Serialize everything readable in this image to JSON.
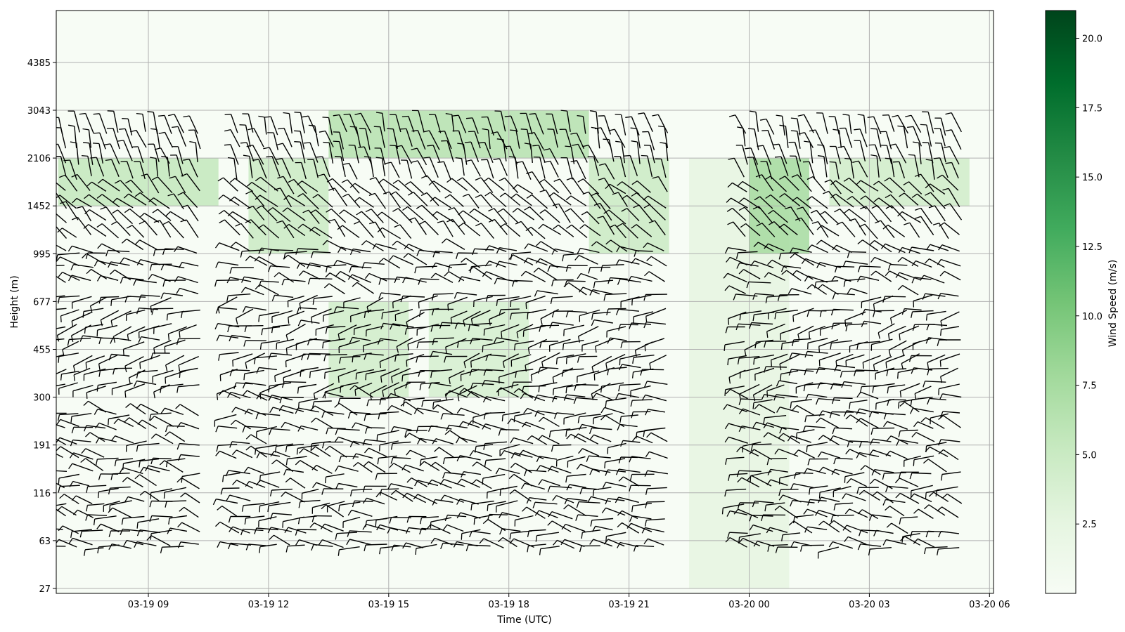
{
  "chart_data": {
    "type": "heatmap",
    "title": "",
    "xlabel": "Time (UTC)",
    "ylabel": "Height (m)",
    "x_ticks": [
      "03-19 09",
      "03-19 12",
      "03-19 15",
      "03-19 18",
      "03-19 21",
      "03-20 00",
      "03-20 03",
      "03-20 06"
    ],
    "y_ticks": [
      "27",
      "63",
      "116",
      "191",
      "300",
      "455",
      "677",
      "995",
      "1452",
      "2106",
      "3043",
      "4385"
    ],
    "colorbar": {
      "label": "Wind Speed (m/s)",
      "ticks": [
        "2.5",
        "5.0",
        "7.5",
        "10.0",
        "12.5",
        "15.0",
        "17.5",
        "20.0"
      ],
      "range": [
        0,
        21
      ],
      "colormap": "Greens",
      "colors": [
        "#f7fcf5",
        "#e5f5e0",
        "#c7e9c0",
        "#a1d99b",
        "#74c476",
        "#41ab5d",
        "#238b45",
        "#006d2c",
        "#00441b"
      ]
    },
    "x_range_hours": [
      6.7,
      30.1
    ],
    "grid": true,
    "overlay": "wind barbs (black)",
    "speed_field": [
      {
        "time_span": [
          "03-19 06:45",
          "03-19 10:45"
        ],
        "height_span": [
          "1452",
          "2106"
        ],
        "speed_mps": 5.5
      },
      {
        "time_span": [
          "03-19 11:30",
          "03-19 13:30"
        ],
        "height_span": [
          "995",
          "2106"
        ],
        "speed_mps": 5.0
      },
      {
        "time_span": [
          "03-19 13:30",
          "03-19 15:30"
        ],
        "height_span": [
          "300",
          "677"
        ],
        "speed_mps": 4.5
      },
      {
        "time_span": [
          "03-19 13:30",
          "03-19 20:00"
        ],
        "height_span": [
          "2106",
          "3043"
        ],
        "speed_mps": 6.5
      },
      {
        "time_span": [
          "03-19 16:00",
          "03-19 18:30"
        ],
        "height_span": [
          "300",
          "677"
        ],
        "speed_mps": 4.0
      },
      {
        "time_span": [
          "03-19 20:00",
          "03-19 22:00"
        ],
        "height_span": [
          "995",
          "2106"
        ],
        "speed_mps": 5.0
      },
      {
        "time_span": [
          "03-19 22:30",
          "03-20 01:00"
        ],
        "height_span": [
          "27",
          "2106"
        ],
        "speed_mps": 2.5
      },
      {
        "time_span": [
          "03-20 00:00",
          "03-20 01:30"
        ],
        "height_span": [
          "995",
          "2106"
        ],
        "speed_mps": 7.5
      },
      {
        "time_span": [
          "03-20 02:00",
          "03-20 05:30"
        ],
        "height_span": [
          "1452",
          "2106"
        ],
        "speed_mps": 4.5
      }
    ]
  }
}
